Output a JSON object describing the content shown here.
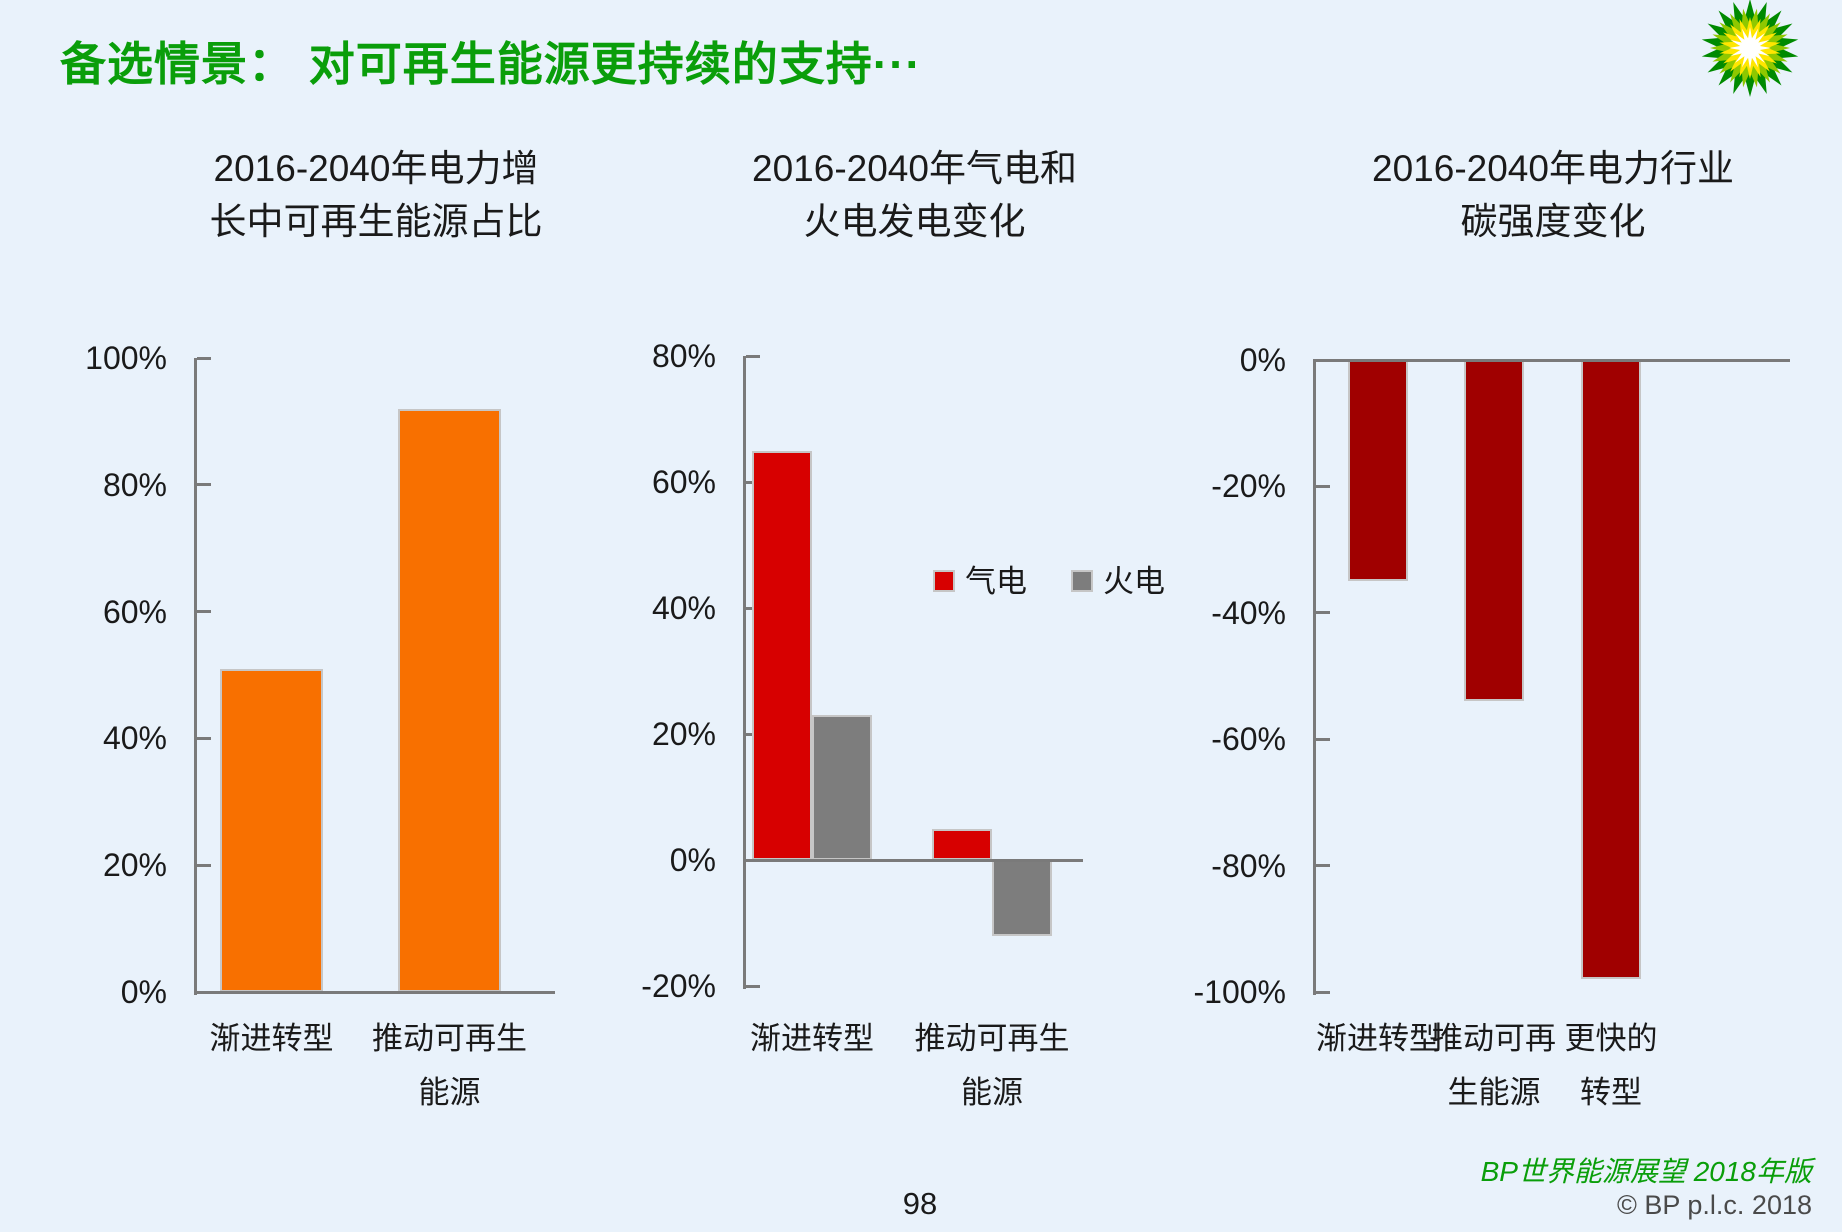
{
  "page": {
    "title": "备选情景： 对可再生能源更持续的支持···",
    "page_number": "98",
    "footer": {
      "source": "BP世界能源展望 2018年版",
      "copyright": "© BP p.l.c. 2018"
    },
    "colors": {
      "background": "#E9F2FB",
      "title_green": "#0A9E0A",
      "footer_green": "#0A9E0A",
      "footer_gray": "#4A4A4A",
      "text_dark": "#1A1A1A",
      "axis_gray": "#7A7A7A",
      "bar_border": "#C6C6C6"
    }
  },
  "logo": {
    "name": "bp-helios-logo",
    "colors": {
      "outer": "#008A00",
      "mid": "#8FC800",
      "inner": "#FFE600",
      "center": "#FFFFFF"
    }
  },
  "chart_data": [
    {
      "type": "bar",
      "title": "2016-2040年电力增长中可再生能源占比",
      "title_lines": [
        "2016-2040年电力增",
        "长中可再生能源占比"
      ],
      "categories": [
        "渐进转型",
        "推动可再生能源"
      ],
      "category_lines": [
        [
          "渐进转型"
        ],
        [
          "推动可再生",
          "能源"
        ]
      ],
      "values": [
        51,
        92
      ],
      "unit": "%",
      "bar_color": "#F87000",
      "ylim": [
        0,
        100
      ],
      "ytick_step": 20,
      "grid": false,
      "legend": null
    },
    {
      "type": "bar",
      "title": "2016-2040年气电和火电发电变化",
      "title_lines": [
        "2016-2040年气电和",
        "火电发电变化"
      ],
      "categories": [
        "渐进转型",
        "推动可再生能源"
      ],
      "category_lines": [
        [
          "渐进转型"
        ],
        [
          "推动可再生",
          "能源"
        ]
      ],
      "series": [
        {
          "name": "气电",
          "color": "#D70000",
          "values": [
            65,
            5
          ]
        },
        {
          "name": "火电",
          "color": "#7D7D7D",
          "values": [
            23,
            -12
          ]
        }
      ],
      "unit": "%",
      "ylim": [
        -20,
        80
      ],
      "ytick_step": 20,
      "grid": false,
      "legend_position": "middle-right"
    },
    {
      "type": "bar",
      "title": "2016-2040年电力行业碳强度变化",
      "title_lines": [
        "2016-2040年电力行业",
        "碳强度变化"
      ],
      "categories": [
        "渐进转型",
        "推动可再生能源",
        "更快的转型"
      ],
      "category_lines": [
        [
          "渐进转型"
        ],
        [
          "推动可再",
          "生能源"
        ],
        [
          "更快的",
          "转型"
        ]
      ],
      "values": [
        -35,
        -54,
        -98
      ],
      "unit": "%",
      "bar_color": "#A00000",
      "ylim": [
        -100,
        0
      ],
      "ytick_step": 20,
      "grid": false,
      "legend": null
    }
  ]
}
